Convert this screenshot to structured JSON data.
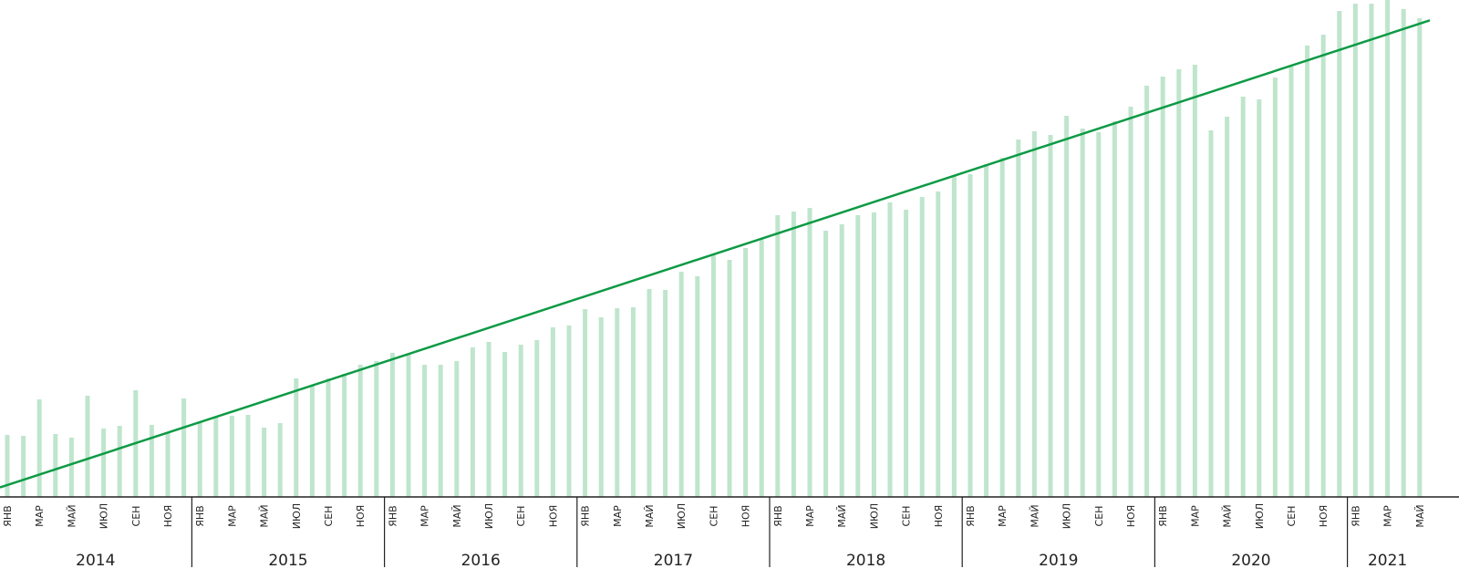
{
  "chart_data": {
    "type": "bar",
    "categories": [
      "ЯНВ",
      null,
      "МАР",
      null,
      "МАЙ",
      null,
      "ИЮЛ",
      null,
      "СЕН",
      null,
      "НОЯ",
      null,
      "ЯНВ",
      null,
      "МАР",
      null,
      "МАЙ",
      null,
      "ИЮЛ",
      null,
      "СЕН",
      null,
      "НОЯ",
      null,
      "ЯНВ",
      null,
      "МАР",
      null,
      "МАЙ",
      null,
      "ИЮЛ",
      null,
      "СЕН",
      null,
      "НОЯ",
      null,
      "ЯНВ",
      null,
      "МАР",
      null,
      "МАЙ",
      null,
      "ИЮЛ",
      null,
      "СЕН",
      null,
      "НОЯ",
      null,
      "ЯНВ",
      null,
      "МАР",
      null,
      "МАЙ",
      null,
      "ИЮЛ",
      null,
      "СЕН",
      null,
      "НОЯ",
      null,
      "ЯНВ",
      null,
      "МАР",
      null,
      "МАЙ",
      null,
      "ИЮЛ",
      null,
      "СЕН",
      null,
      "НОЯ",
      null,
      "ЯНВ",
      null,
      "МАР",
      null,
      "МАЙ",
      null,
      "ИЮЛ",
      null,
      "СЕН",
      null,
      "НОЯ",
      null,
      "ЯНВ",
      null,
      "МАР",
      null,
      "МАЙ"
    ],
    "years": [
      "2014",
      "2015",
      "2016",
      "2017",
      "2018",
      "2019",
      "2020",
      "2021"
    ],
    "values": [
      68,
      67,
      107,
      69,
      65,
      111,
      75,
      78,
      117,
      79,
      70,
      108,
      82,
      87,
      89,
      90,
      76,
      81,
      130,
      122,
      130,
      135,
      145,
      149,
      158,
      157,
      145,
      145,
      149,
      164,
      170,
      159,
      167,
      172,
      186,
      188,
      206,
      197,
      207,
      208,
      228,
      227,
      247,
      242,
      265,
      260,
      273,
      284,
      309,
      313,
      317,
      292,
      299,
      309,
      312,
      323,
      315,
      329,
      335,
      352,
      354,
      365,
      372,
      392,
      401,
      397,
      418,
      404,
      400,
      412,
      428,
      451,
      461,
      469,
      474,
      402,
      417,
      439,
      436,
      460,
      472,
      495,
      507,
      533,
      541,
      541,
      545,
      535,
      525
    ],
    "color": "#bfe5cd",
    "trend": {
      "start": 13,
      "end": 519,
      "color": "#0d9a45"
    },
    "ylim": [
      0,
      545
    ]
  }
}
